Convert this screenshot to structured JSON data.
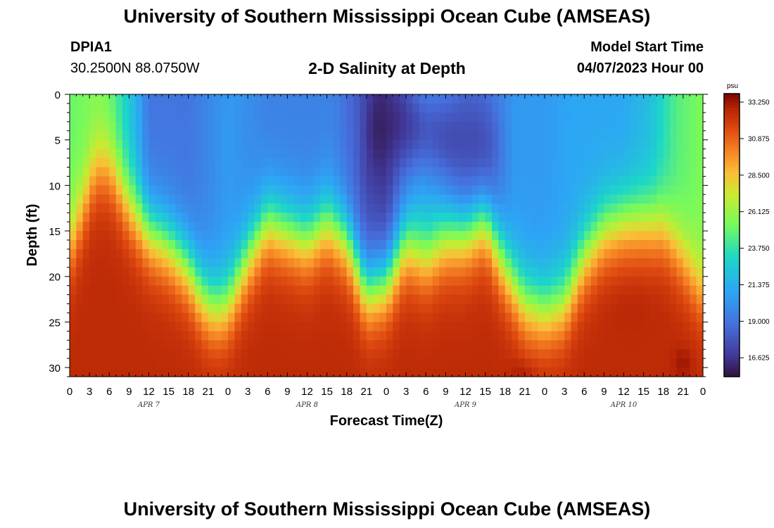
{
  "header": {
    "title": "University of Southern Mississippi Ocean Cube (AMSEAS)",
    "station_id": "DPIA1",
    "station_coords": "30.2500N  88.0750W",
    "chart_title": "2-D Salinity at Depth",
    "model_start_label": "Model Start Time",
    "model_start_value": "04/07/2023 Hour 00"
  },
  "footer": {
    "title": "University of Southern Mississippi Ocean Cube (AMSEAS)"
  },
  "chart_data": {
    "type": "heatmap",
    "title": "2-D Salinity at Depth",
    "xlabel": "Forecast Time(Z)",
    "ylabel": "Depth (ft)",
    "x_range_hours": [
      0,
      96
    ],
    "y_range_ft": [
      0,
      31
    ],
    "x_tick_labels": [
      "0",
      "3",
      "6",
      "9",
      "12",
      "15",
      "18",
      "21",
      "0",
      "3",
      "6",
      "9",
      "12",
      "15",
      "18",
      "21",
      "0",
      "3",
      "6",
      "9",
      "12",
      "15",
      "18",
      "21",
      "0",
      "3",
      "6",
      "9",
      "12",
      "15",
      "18",
      "21",
      "0"
    ],
    "y_ticks": [
      0,
      5,
      10,
      15,
      20,
      25,
      30
    ],
    "day_labels": [
      "APR 7",
      "APR 8",
      "APR 9",
      "APR 10"
    ],
    "colorbar": {
      "unit": "psu",
      "min": 15.4,
      "max": 33.8,
      "tick_values": [
        "33.250",
        "30.875",
        "28.500",
        "26.125",
        "23.750",
        "21.375",
        "19.000",
        "16.625"
      ]
    },
    "halocline_depth_ft": {
      "hours": [
        0,
        4,
        6,
        9,
        12,
        15,
        18,
        20,
        22,
        24,
        27,
        30,
        33,
        36,
        39,
        42,
        45,
        48,
        51,
        54,
        57,
        60,
        63,
        66,
        69,
        72,
        75,
        78,
        81,
        84,
        87,
        90,
        93,
        96
      ],
      "depth": [
        17,
        8,
        8,
        12,
        15,
        16.5,
        19,
        22,
        23.5,
        23,
        18,
        14,
        15,
        16,
        14,
        16,
        21.5,
        20.5,
        16.5,
        18,
        16,
        15.5,
        14,
        19,
        23,
        24,
        23,
        18,
        15,
        14,
        14,
        14.5,
        18,
        22
      ]
    },
    "surface_salinity_psu": {
      "hours": [
        0,
        4,
        6,
        10,
        12,
        18,
        24,
        30,
        36,
        40,
        45,
        48,
        50,
        53,
        56,
        60,
        64,
        68,
        72,
        76,
        80,
        84,
        88,
        92,
        96
      ],
      "values": [
        25,
        25.5,
        25,
        21.5,
        19,
        19,
        20.5,
        19.5,
        19.5,
        19.5,
        17.5,
        17,
        19,
        21.5,
        21,
        19,
        19.5,
        20.5,
        20.5,
        21,
        21,
        21,
        22,
        24.5,
        25.5
      ]
    },
    "fresh_core": {
      "hours": [
        45,
        50,
        54,
        58,
        62,
        66
      ],
      "min_psu": [
        15.5,
        16.5,
        18,
        17.5,
        17.5,
        18.5
      ],
      "depth_ft": [
        4,
        3,
        4,
        5,
        5,
        6
      ]
    },
    "bottom_salinity_psu": 32.6,
    "max_salinity_psu": 33.6
  }
}
